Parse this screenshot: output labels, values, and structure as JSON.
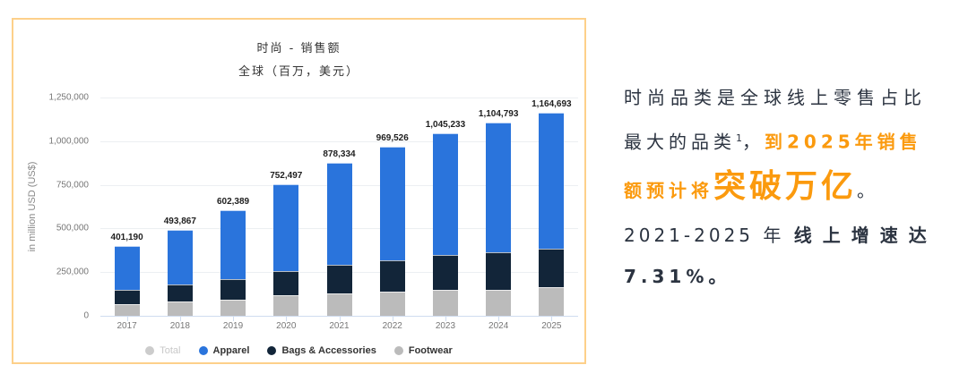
{
  "chart": {
    "title": "时尚 - 销售额",
    "subtitle": "全球（百万，美元）",
    "y_axis_label": "in million USD (US$)",
    "y_ticks": [
      "1,250,000",
      "1,000,000",
      "750,000",
      "500,000",
      "250,000",
      "0"
    ],
    "legend": [
      {
        "label": "Total",
        "color": "#cccccc",
        "disabled": true
      },
      {
        "label": "Apparel",
        "color": "#2a74dc"
      },
      {
        "label": "Bags & Accessories",
        "color": "#122539"
      },
      {
        "label": "Footwear",
        "color": "#bbbbbb"
      }
    ],
    "totals_labels": [
      "401,190",
      "493,867",
      "602,389",
      "752,497",
      "878,334",
      "969,526",
      "1,045,233",
      "1,104,793",
      "1,164,693"
    ],
    "years": [
      "2017",
      "2018",
      "2019",
      "2020",
      "2021",
      "2022",
      "2023",
      "2024",
      "2025"
    ]
  },
  "chart_data": {
    "type": "bar",
    "stacked": true,
    "title": "时尚 - 销售额",
    "subtitle": "全球（百万，美元）",
    "xlabel": "",
    "ylabel": "in million USD (US$)",
    "ylim": [
      0,
      1250000
    ],
    "yticks": [
      0,
      250000,
      500000,
      750000,
      1000000,
      1250000
    ],
    "grid": true,
    "legend_position": "bottom",
    "categories": [
      "2017",
      "2018",
      "2019",
      "2020",
      "2021",
      "2022",
      "2023",
      "2024",
      "2025"
    ],
    "totals": [
      401190,
      493867,
      602389,
      752497,
      878334,
      969526,
      1045233,
      1104793,
      1164693
    ],
    "series": [
      {
        "name": "Footwear",
        "color": "#bbbbbb",
        "values": [
          67000,
          82000,
          92000,
          118000,
          128000,
          138000,
          149000,
          149000,
          164000
        ]
      },
      {
        "name": "Bags & Accessories",
        "color": "#122539",
        "values": [
          82000,
          97000,
          118000,
          138000,
          164000,
          180000,
          199000,
          215000,
          220000
        ]
      },
      {
        "name": "Apparel",
        "color": "#2a74dc",
        "values": [
          252190,
          314867,
          392389,
          496497,
          586334,
          651526,
          697233,
          740793,
          780693
        ]
      }
    ]
  },
  "side_text": {
    "line1": "时尚品类是全球线上零售占比",
    "line2_normal": "最大的品类",
    "line2_sup": "1",
    "line2_comma": "，",
    "line2_orange": "到2025年销售",
    "line3_orange": "额预计将",
    "line3_big": "突破万亿",
    "line3_end": "。",
    "line4_normal": "2021-2025 年 ",
    "line4_bold": "线上增速达",
    "line5": "7.31%。"
  }
}
